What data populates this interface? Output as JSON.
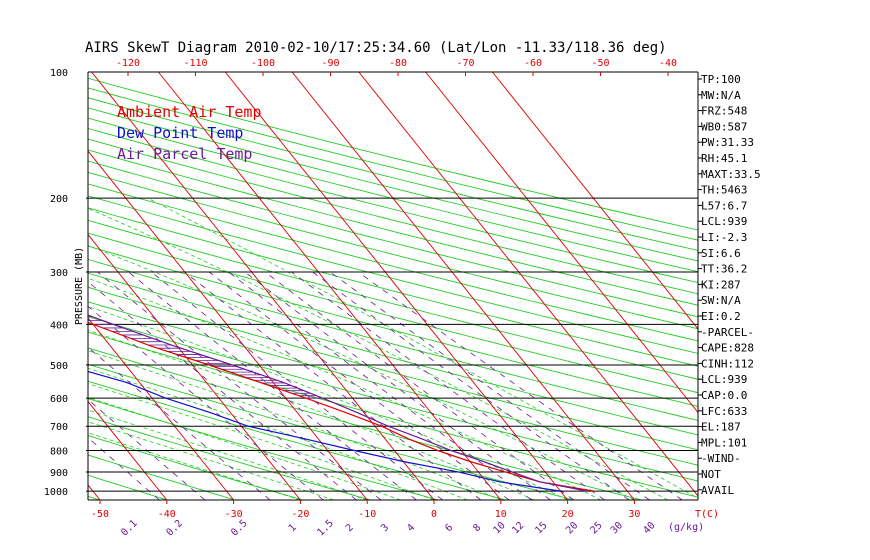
{
  "chart_data": {
    "type": "line",
    "title": "AIRS SkewT Diagram 2010-02-10/17:25:34.60 (Lat/Lon -11.33/118.36 deg)",
    "ylabel": "PRESSURE (MB)",
    "xlabel": "T(C)",
    "mixing_ratio_unit": "g/kg",
    "pressure_ticks": [
      100,
      200,
      300,
      400,
      500,
      600,
      700,
      800,
      900,
      1000
    ],
    "top_temp_ticks": [
      -120,
      -110,
      -100,
      -90,
      -80,
      -70,
      -60,
      -50,
      -40
    ],
    "bottom_temp_ticks": [
      -50,
      -40,
      -30,
      -20,
      -10,
      0,
      10,
      20,
      30
    ],
    "mixing_ratio_ticks": [
      "0.1",
      "0.2",
      "0.5",
      "1",
      "1.5",
      "2",
      "3",
      "4",
      "6",
      "8",
      "10",
      "12",
      "15",
      "20",
      "25",
      "30",
      "40"
    ],
    "legend": [
      {
        "label": "Ambient Air Temp",
        "color": "#e00000"
      },
      {
        "label": "Dew Point Temp",
        "color": "#1010d0"
      },
      {
        "label": "Air Parcel Temp",
        "color": "#6a1a9a"
      }
    ],
    "series": [
      {
        "name": "Ambient Air Temp",
        "color": "#e00000",
        "points": [
          [
            100,
            -82
          ],
          [
            150,
            -72
          ],
          [
            200,
            -62
          ],
          [
            250,
            -53
          ],
          [
            300,
            -45
          ],
          [
            350,
            -37.5
          ],
          [
            400,
            -30
          ],
          [
            450,
            -24
          ],
          [
            500,
            -17.5
          ],
          [
            550,
            -12
          ],
          [
            600,
            -7
          ],
          [
            650,
            -2.7
          ],
          [
            700,
            1
          ],
          [
            750,
            3.5
          ],
          [
            800,
            6.5
          ],
          [
            850,
            10
          ],
          [
            900,
            14
          ],
          [
            950,
            18
          ],
          [
            1000,
            25
          ]
        ]
      },
      {
        "name": "Dew Point Temp",
        "color": "#1010d0",
        "points": [
          [
            100,
            -83
          ],
          [
            150,
            -80
          ],
          [
            200,
            -76
          ],
          [
            250,
            -72
          ],
          [
            300,
            -66
          ],
          [
            350,
            -60
          ],
          [
            400,
            -52
          ],
          [
            450,
            -48
          ],
          [
            500,
            -39
          ],
          [
            550,
            -32
          ],
          [
            600,
            -28
          ],
          [
            650,
            -23
          ],
          [
            700,
            -19
          ],
          [
            750,
            -12
          ],
          [
            800,
            -6
          ],
          [
            850,
            0
          ],
          [
            900,
            7
          ],
          [
            950,
            12
          ],
          [
            1000,
            20
          ]
        ]
      },
      {
        "name": "Air Parcel Temp",
        "color": "#6a1a9a",
        "points": [
          [
            100,
            -87
          ],
          [
            150,
            -76
          ],
          [
            200,
            -64
          ],
          [
            250,
            -51
          ],
          [
            300,
            -42
          ],
          [
            350,
            -34
          ],
          [
            400,
            -27
          ],
          [
            450,
            -20.5
          ],
          [
            500,
            -14
          ],
          [
            550,
            -8.5
          ],
          [
            600,
            -4.5
          ],
          [
            650,
            -1
          ],
          [
            700,
            2
          ],
          [
            750,
            5.5
          ],
          [
            800,
            8.5
          ],
          [
            850,
            12
          ],
          [
            900,
            15
          ],
          [
            950,
            18
          ],
          [
            1000,
            24
          ]
        ]
      }
    ],
    "indices": [
      "TP:100",
      "MW:N/A",
      "FRZ:548",
      "WB0:587",
      "PW:31.33",
      "RH:45.1",
      "MAXT:33.5",
      "TH:5463",
      "L57:6.7",
      "LCL:939",
      "LI:-2.3",
      "SI:6.6",
      "TT:36.2",
      "KI:287",
      "SW:N/A",
      "EI:0.2",
      "-PARCEL-",
      "CAPE:828",
      "CINH:112",
      "LCL:939",
      "CAP:0.0",
      "LFC:633",
      "EL:187",
      "MPL:101",
      "-WIND-",
      "NOT",
      "AVAIL"
    ]
  }
}
